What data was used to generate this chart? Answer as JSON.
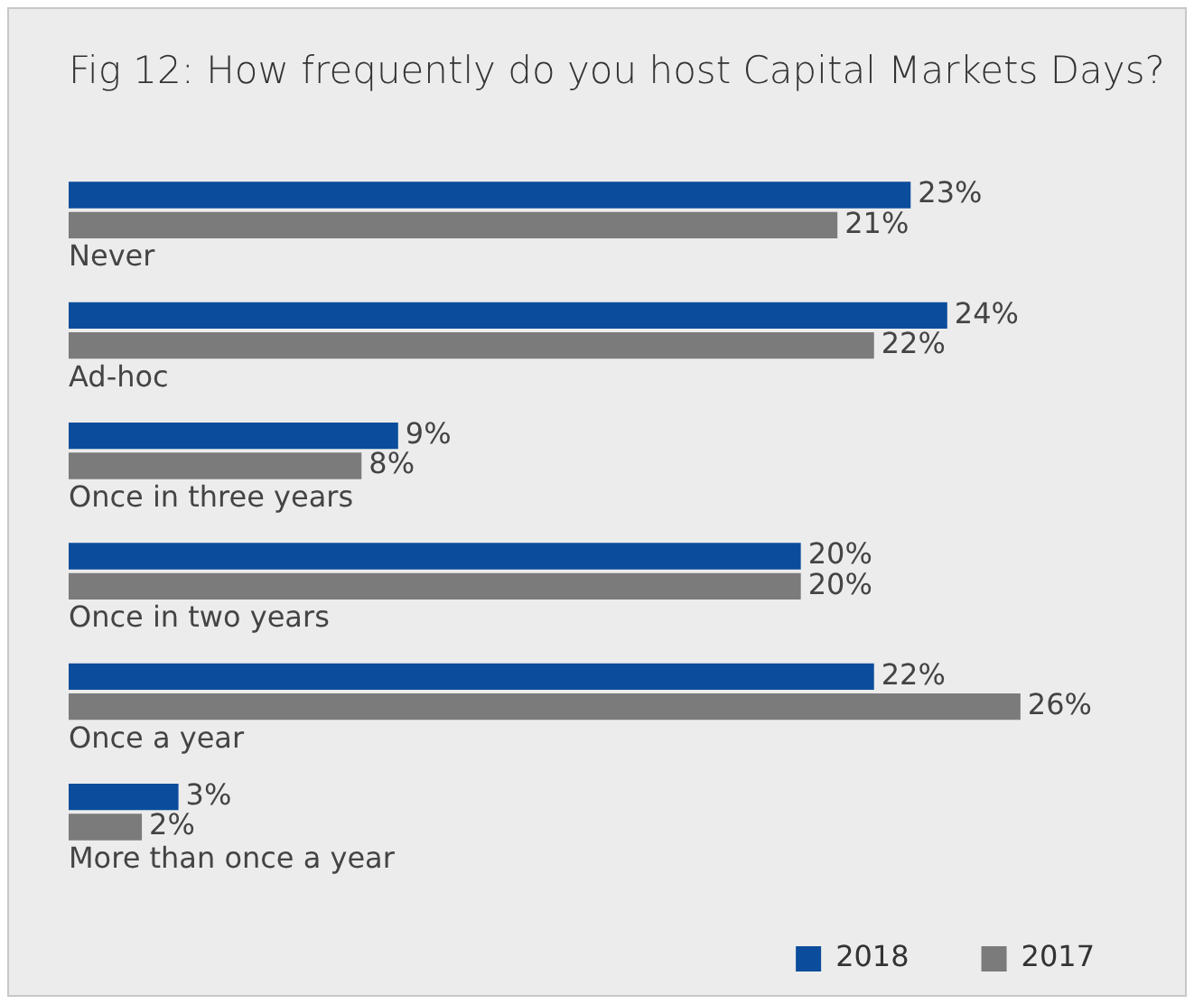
{
  "chart_data": {
    "type": "bar",
    "orientation": "horizontal",
    "title": "Fig 12: How frequently do you host Capital Markets Days?",
    "categories": [
      "Never",
      "Ad-hoc",
      "Once in three years",
      "Once in two years",
      "Once a year",
      "More than once a year"
    ],
    "series": [
      {
        "name": "2018",
        "color": "#0b4d9c",
        "values": [
          23,
          24,
          9,
          20,
          22,
          3
        ],
        "value_labels": [
          "23%",
          "24%",
          "9%",
          "20%",
          "22%",
          "3%"
        ]
      },
      {
        "name": "2017",
        "color": "#7b7b7b",
        "values": [
          21,
          22,
          8,
          20,
          26,
          2
        ],
        "value_labels": [
          "21%",
          "22%",
          "8%",
          "20%",
          "26%",
          "2%"
        ]
      }
    ],
    "legend": "bottom right"
  }
}
